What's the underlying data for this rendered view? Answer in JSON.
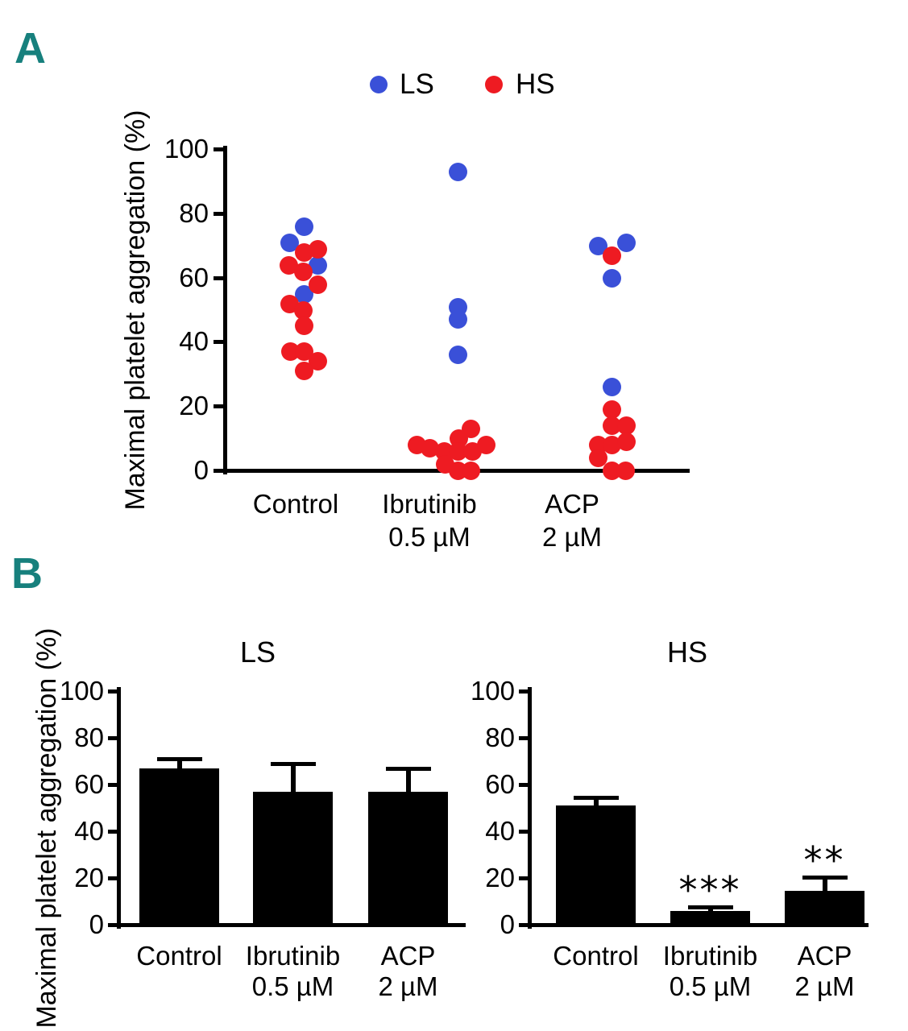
{
  "figure": {
    "panel_a_label": "A",
    "panel_b_label": "B",
    "accent_teal": "#17807d",
    "ls_color": "#3a50d8",
    "hs_color": "#ee1b22"
  },
  "chart_data": [
    {
      "id": "panel-a-scatter",
      "type": "scatter",
      "title": "",
      "ylabel": "Maximal platelet aggregation (%)",
      "ylim": [
        0,
        100
      ],
      "yticks": [
        100,
        80,
        60,
        40,
        20,
        0
      ],
      "grid": false,
      "legend_position": "top",
      "legend": [
        {
          "label": "LS",
          "color": "#3a50d8"
        },
        {
          "label": "HS",
          "color": "#ee1b22"
        }
      ],
      "categories": [
        {
          "line1": "Control",
          "line2": ""
        },
        {
          "line1": "Ibrutinib",
          "line2": "0.5 µM"
        },
        {
          "line1": "ACP",
          "line2": "2 µM"
        }
      ],
      "series": [
        {
          "name": "LS",
          "color": "#3a50d8",
          "points": [
            {
              "group": 0,
              "value": 76,
              "dx": 1
            },
            {
              "group": 0,
              "value": 71,
              "dx": -17
            },
            {
              "group": 0,
              "value": 64,
              "dx": 18
            },
            {
              "group": 0,
              "value": 55,
              "dx": 1
            },
            {
              "group": 1,
              "value": 93,
              "dx": 8
            },
            {
              "group": 1,
              "value": 51,
              "dx": 8
            },
            {
              "group": 1,
              "value": 47,
              "dx": 8
            },
            {
              "group": 1,
              "value": 36,
              "dx": 8
            },
            {
              "group": 2,
              "value": 70,
              "dx": -18
            },
            {
              "group": 2,
              "value": 71,
              "dx": 17
            },
            {
              "group": 2,
              "value": 60,
              "dx": -1
            },
            {
              "group": 2,
              "value": 26,
              "dx": -1
            }
          ]
        },
        {
          "name": "HS",
          "color": "#ee1b22",
          "points": [
            {
              "group": 0,
              "value": 68,
              "dx": 1
            },
            {
              "group": 0,
              "value": 69,
              "dx": 18
            },
            {
              "group": 0,
              "value": 64,
              "dx": -18
            },
            {
              "group": 0,
              "value": 62,
              "dx": 0
            },
            {
              "group": 0,
              "value": 58,
              "dx": 18
            },
            {
              "group": 0,
              "value": 52,
              "dx": -17
            },
            {
              "group": 0,
              "value": 50,
              "dx": 0
            },
            {
              "group": 0,
              "value": 45,
              "dx": 1
            },
            {
              "group": 0,
              "value": 37,
              "dx": -16
            },
            {
              "group": 0,
              "value": 37,
              "dx": 1
            },
            {
              "group": 0,
              "value": 34,
              "dx": 18
            },
            {
              "group": 0,
              "value": 31,
              "dx": 1
            },
            {
              "group": 1,
              "value": 13,
              "dx": 24
            },
            {
              "group": 1,
              "value": 10,
              "dx": 9
            },
            {
              "group": 1,
              "value": 8,
              "dx": -43
            },
            {
              "group": 1,
              "value": 7,
              "dx": -27
            },
            {
              "group": 1,
              "value": 6,
              "dx": -9
            },
            {
              "group": 1,
              "value": 6,
              "dx": 8
            },
            {
              "group": 1,
              "value": 6,
              "dx": 26
            },
            {
              "group": 1,
              "value": 8,
              "dx": 43
            },
            {
              "group": 1,
              "value": 2,
              "dx": -8
            },
            {
              "group": 1,
              "value": 0,
              "dx": 8
            },
            {
              "group": 1,
              "value": 0,
              "dx": 24
            },
            {
              "group": 2,
              "value": 67,
              "dx": -1
            },
            {
              "group": 2,
              "value": 19,
              "dx": -1
            },
            {
              "group": 2,
              "value": 14,
              "dx": -1
            },
            {
              "group": 2,
              "value": 14,
              "dx": 17
            },
            {
              "group": 2,
              "value": 8,
              "dx": -18
            },
            {
              "group": 2,
              "value": 8,
              "dx": -1
            },
            {
              "group": 2,
              "value": 9,
              "dx": 17
            },
            {
              "group": 2,
              "value": 4,
              "dx": -18
            },
            {
              "group": 2,
              "value": 0,
              "dx": -1
            },
            {
              "group": 2,
              "value": 0,
              "dx": 16
            }
          ]
        }
      ]
    },
    {
      "id": "panel-b-ls",
      "type": "bar",
      "title": "LS",
      "ylabel": "Maximal platelet aggregation (%)",
      "ylim": [
        0,
        100
      ],
      "yticks": [
        100,
        80,
        60,
        40,
        20,
        0
      ],
      "bar_color": "#000000",
      "categories": [
        {
          "line1": "Control",
          "line2": ""
        },
        {
          "line1": "Ibrutinib",
          "line2": "0.5 µM"
        },
        {
          "line1": "ACP",
          "line2": "2 µM"
        }
      ],
      "values": [
        67,
        57,
        57
      ],
      "errors_up": [
        4,
        12,
        10
      ],
      "annotations": [
        "",
        "",
        ""
      ]
    },
    {
      "id": "panel-b-hs",
      "type": "bar",
      "title": "HS",
      "ylabel": "",
      "ylim": [
        0,
        100
      ],
      "yticks": [
        100,
        80,
        60,
        40,
        20,
        0
      ],
      "bar_color": "#000000",
      "categories": [
        {
          "line1": "Control",
          "line2": ""
        },
        {
          "line1": "Ibrutinib",
          "line2": "0.5 µM"
        },
        {
          "line1": "ACP",
          "line2": "2 µM"
        }
      ],
      "values": [
        51,
        6,
        14.5
      ],
      "errors_up": [
        3.5,
        1.5,
        5.8
      ],
      "annotations": [
        "",
        "***",
        "**"
      ]
    }
  ]
}
